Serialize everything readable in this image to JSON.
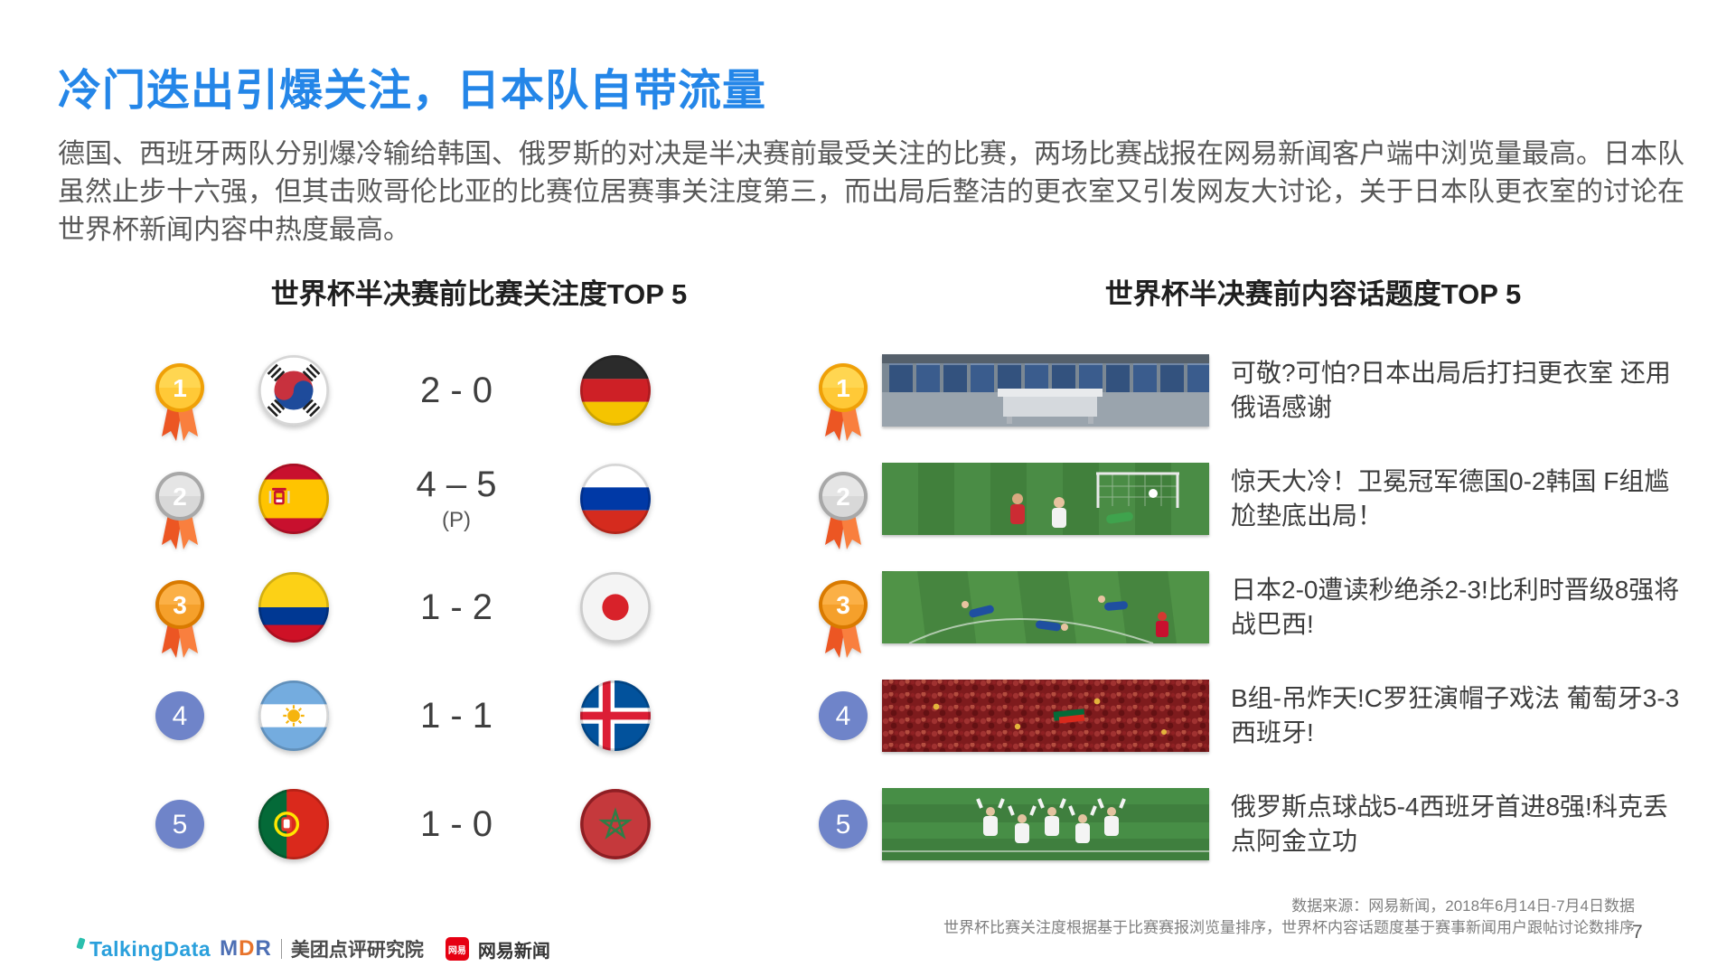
{
  "slide": {
    "title": "冷门迭出引爆关注，日本队自带流量",
    "intro": "德国、西班牙两队分别爆冷输给韩国、俄罗斯的对决是半决赛前最受关注的比赛，两场比赛战报在网易新闻客户端中浏览量最高。日本队虽然止步十六强，但其击败哥伦比亚的比赛位居赛事关注度第三，而出局后整洁的更衣室又引发网友大讨论，关于日本队更衣室的讨论在世界杯新闻内容中热度最高。",
    "page_number": "7"
  },
  "left_section": {
    "title": "世界杯半决赛前比赛关注度TOP 5",
    "rows": [
      {
        "rank": "1",
        "medal": "gold",
        "team1": "south-korea",
        "score": "2 - 0",
        "note": "",
        "team2": "germany"
      },
      {
        "rank": "2",
        "medal": "silver",
        "team1": "spain",
        "score": "4 – 5",
        "note": "(P)",
        "team2": "russia"
      },
      {
        "rank": "3",
        "medal": "bronze",
        "team1": "colombia",
        "score": "1 - 2",
        "note": "",
        "team2": "japan"
      },
      {
        "rank": "4",
        "medal": "plain",
        "team1": "argentina",
        "score": "1 - 1",
        "note": "",
        "team2": "iceland"
      },
      {
        "rank": "5",
        "medal": "plain",
        "team1": "portugal",
        "score": "1 - 0",
        "note": "",
        "team2": "morocco"
      }
    ]
  },
  "right_section": {
    "title": "世界杯半决赛前内容话题度TOP 5",
    "rows": [
      {
        "rank": "1",
        "medal": "gold",
        "thumbnail": "japan-locker-room",
        "headline": "可敬?可怕?日本出局后打扫更衣室 还用俄语感谢"
      },
      {
        "rank": "2",
        "medal": "silver",
        "thumbnail": "germany-korea-pitch",
        "headline": "惊天大冷！卫冕冠军德国0-2韩国 F组尴尬垫底出局！"
      },
      {
        "rank": "3",
        "medal": "bronze",
        "thumbnail": "japan-belgium-pitch",
        "headline": "日本2-0遭读秒绝杀2-3!比利时晋级8强将战巴西!"
      },
      {
        "rank": "4",
        "medal": "plain",
        "thumbnail": "portugal-fans-crowd",
        "headline": "B组-吊炸天!C罗狂演帽子戏法 葡萄牙3-3西班牙!"
      },
      {
        "rank": "5",
        "medal": "plain",
        "thumbnail": "russia-spain-pitch",
        "headline": "俄罗斯点球战5-4西班牙首进8强!科克丢点阿金立功"
      }
    ]
  },
  "footer": {
    "source_line1": "数据来源：网易新闻，2018年6月14日-7月4日数据",
    "source_line2": "世界杯比赛关注度根据基于比赛赛报浏览量排序，世界杯内容话题度基于赛事新闻用户跟帖讨论数排序",
    "logos": {
      "talkingdata": "TalkingData",
      "mdr": "MDR",
      "meituan": "美团点评研究院",
      "netease_badge": "网易",
      "netease": "网易新闻"
    }
  },
  "colors": {
    "title_blue": "#2486E8",
    "body_text": "#595959",
    "heading_text": "#1F1F1F",
    "score_text": "#3F3F3F",
    "medal_gold": "#FFC937",
    "medal_silver": "#D8D8D8",
    "medal_bronze": "#F5A02B",
    "ribbon_orange": "#EC5623",
    "rank_circle_blue": "#6F84C9",
    "talkingdata_blue": "#2AA0DC",
    "netease_red": "#E60012"
  }
}
